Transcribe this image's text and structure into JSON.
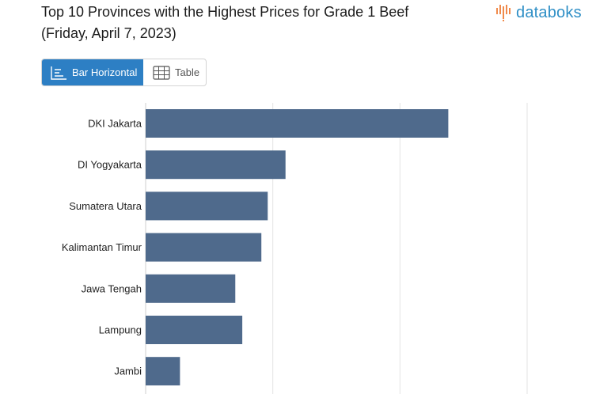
{
  "header": {
    "title_line1": "Top 10 Provinces with the Highest Prices for Grade 1 Beef",
    "title_line2": "(Friday, April 7, 2023)",
    "logo_text": "databoks",
    "logo_icon": "databoks-bars-icon"
  },
  "tabs": [
    {
      "label": "Bar Horizontal",
      "icon": "bar-horizontal-icon",
      "active": true
    },
    {
      "label": "Table",
      "icon": "table-grid-icon",
      "active": false
    }
  ],
  "colors": {
    "bar": "#4f6a8c",
    "accent": "#2d7fc4",
    "logo_orange": "#f08a4b",
    "logo_blue": "#2f8fc6"
  },
  "chart_data": {
    "type": "bar",
    "orientation": "horizontal",
    "categories": [
      "DKI Jakarta",
      "DI Yogyakarta",
      "Sumatera Utara",
      "Kalimantan Timur",
      "Jawa Tengah",
      "Lampung",
      "Jambi"
    ],
    "values": [
      163800,
      151000,
      149600,
      149100,
      147050,
      147600,
      142700
    ],
    "xlim": [
      140000,
      170000
    ],
    "grid": true,
    "title": "Top 10 Provinces with the Highest Prices for Grade 1 Beef (Friday, April 7, 2023)"
  }
}
